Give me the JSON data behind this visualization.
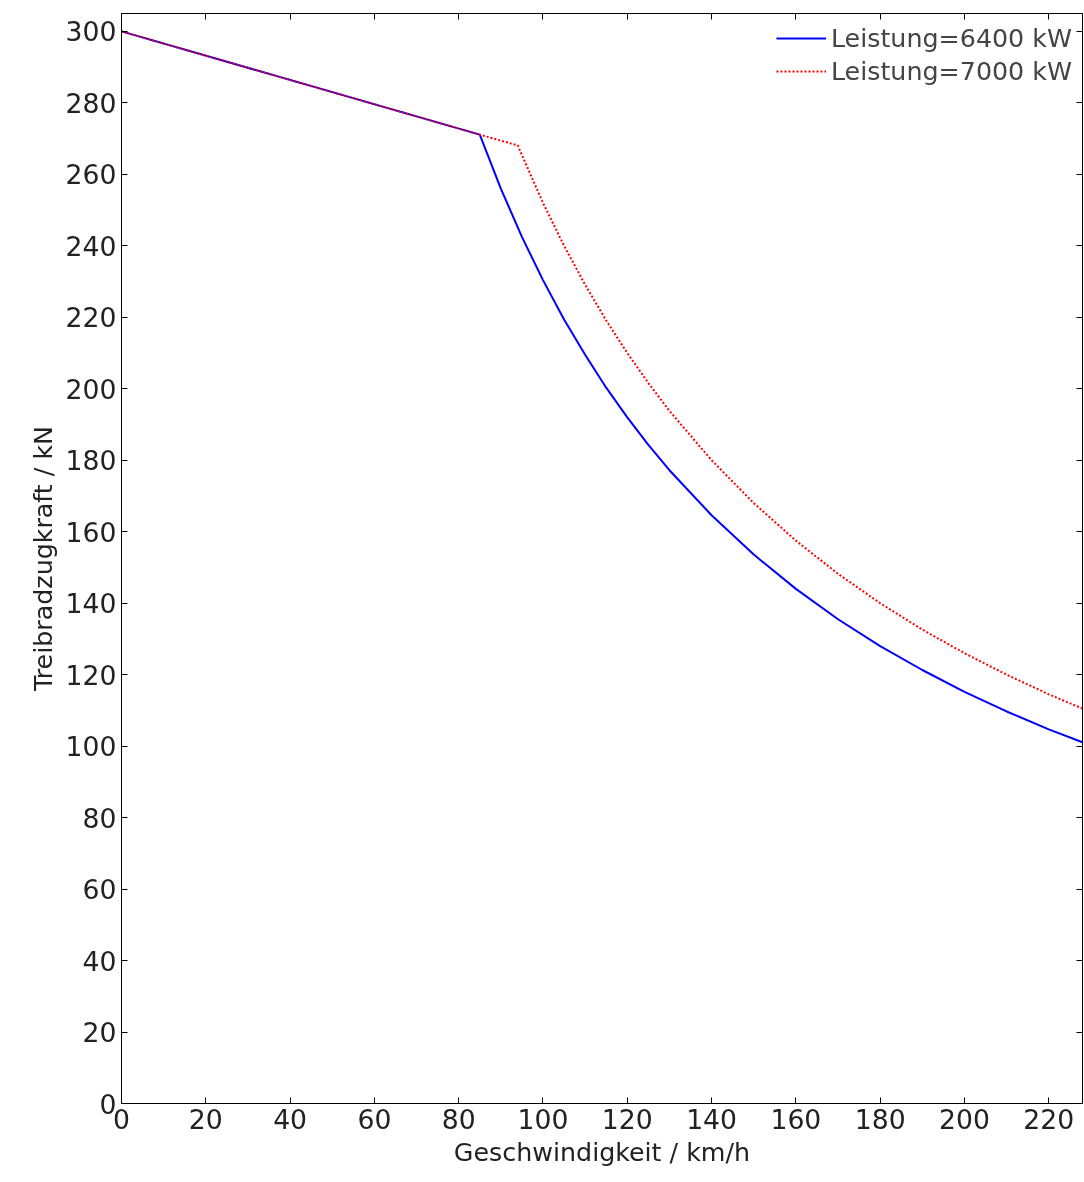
{
  "chart_data": {
    "type": "line",
    "xlabel": "Geschwindigkeit / km/h",
    "ylabel": "Treibradzugkraft / kN",
    "xlim": [
      0,
      228
    ],
    "ylim": [
      0,
      305
    ],
    "xticks": [
      0,
      20,
      40,
      60,
      80,
      100,
      120,
      140,
      160,
      180,
      200,
      220
    ],
    "yticks": [
      0,
      20,
      40,
      60,
      80,
      100,
      120,
      140,
      160,
      180,
      200,
      220,
      240,
      260,
      280,
      300
    ],
    "grid": false,
    "legend": "top right",
    "series": [
      {
        "name": "Leistung=6400 kW",
        "color": "#0000ff",
        "line_style": "solid",
        "x": [
          0,
          85,
          90,
          95,
          100,
          105,
          110,
          115,
          120,
          125,
          130,
          140,
          150,
          160,
          170,
          180,
          190,
          200,
          210,
          220,
          228
        ],
        "values": [
          300,
          271.1,
          256,
          242.5,
          230.4,
          219.4,
          209.5,
          200.3,
          192,
          184.3,
          177.2,
          164.6,
          153.6,
          144,
          135.5,
          128,
          121.3,
          115.2,
          109.7,
          104.7,
          101.1
        ]
      },
      {
        "name": "Leistung=7000 kW",
        "color": "#ff0000",
        "line_style": "dotted",
        "x": [
          0,
          85,
          94,
          100,
          105,
          110,
          115,
          120,
          125,
          130,
          140,
          150,
          160,
          170,
          180,
          190,
          200,
          210,
          220,
          228
        ],
        "values": [
          300,
          271.1,
          268.1,
          252,
          240,
          229.1,
          219.1,
          210,
          201.6,
          193.8,
          180,
          168,
          157.5,
          148.2,
          140,
          132.6,
          126,
          120,
          114.5,
          110.5
        ]
      }
    ]
  }
}
